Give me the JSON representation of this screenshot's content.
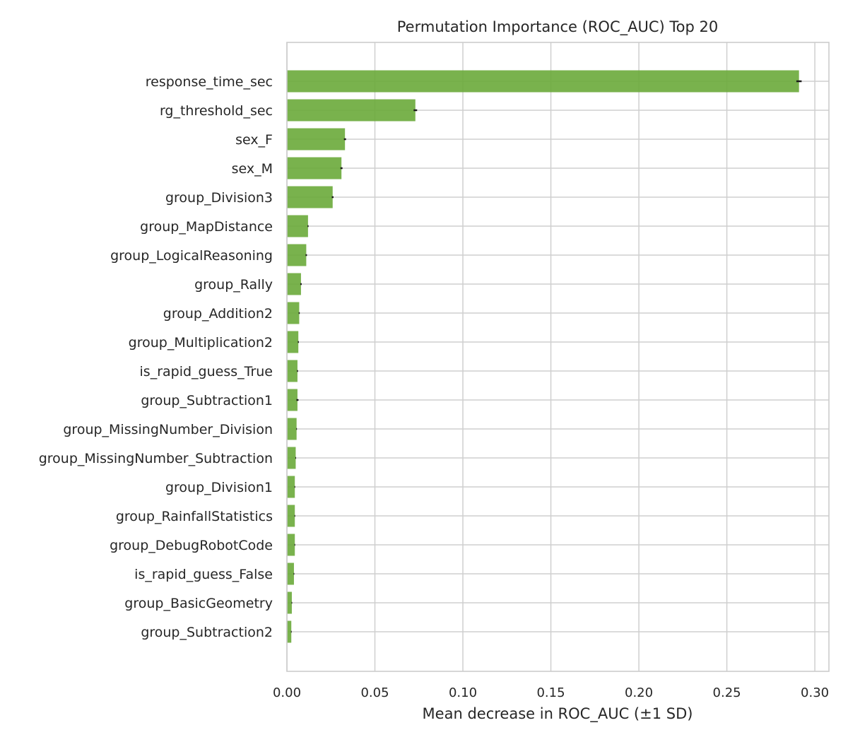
{
  "chart_data": {
    "type": "bar",
    "orientation": "horizontal",
    "title": "Permutation Importance (ROC_AUC) Top 20",
    "xlabel": "Mean decrease in ROC_AUC (±1 SD)",
    "ylabel": "",
    "xlim": [
      0,
      0.308
    ],
    "xticks": [
      0.0,
      0.05,
      0.1,
      0.15,
      0.2,
      0.25,
      0.3
    ],
    "xtick_labels": [
      "0.00",
      "0.05",
      "0.10",
      "0.15",
      "0.20",
      "0.25",
      "0.30"
    ],
    "grid": true,
    "bar_color": "#6aaa3a",
    "categories": [
      "response_time_sec",
      "rg_threshold_sec",
      "sex_F",
      "sex_M",
      "group_Division3",
      "group_MapDistance",
      "group_LogicalReasoning",
      "group_Rally",
      "group_Addition2",
      "group_Multiplication2",
      "is_rapid_guess_True",
      "group_Subtraction1",
      "group_MissingNumber_Division",
      "group_MissingNumber_Subtraction",
      "group_Division1",
      "group_RainfallStatistics",
      "group_DebugRobotCode",
      "is_rapid_guess_False",
      "group_BasicGeometry",
      "group_Subtraction2"
    ],
    "values": [
      0.291,
      0.073,
      0.033,
      0.031,
      0.026,
      0.012,
      0.011,
      0.008,
      0.007,
      0.0065,
      0.006,
      0.006,
      0.0055,
      0.005,
      0.0045,
      0.0045,
      0.0045,
      0.004,
      0.0028,
      0.0025
    ],
    "errors": [
      0.0015,
      0.001,
      0.0006,
      0.0006,
      0.0005,
      0.0003,
      0.0004,
      0.0004,
      0.0003,
      0.0003,
      0.0003,
      0.0006,
      0.0002,
      0.0002,
      0.0002,
      0.0002,
      0.0002,
      0.0002,
      0.0002,
      0.0002
    ]
  }
}
